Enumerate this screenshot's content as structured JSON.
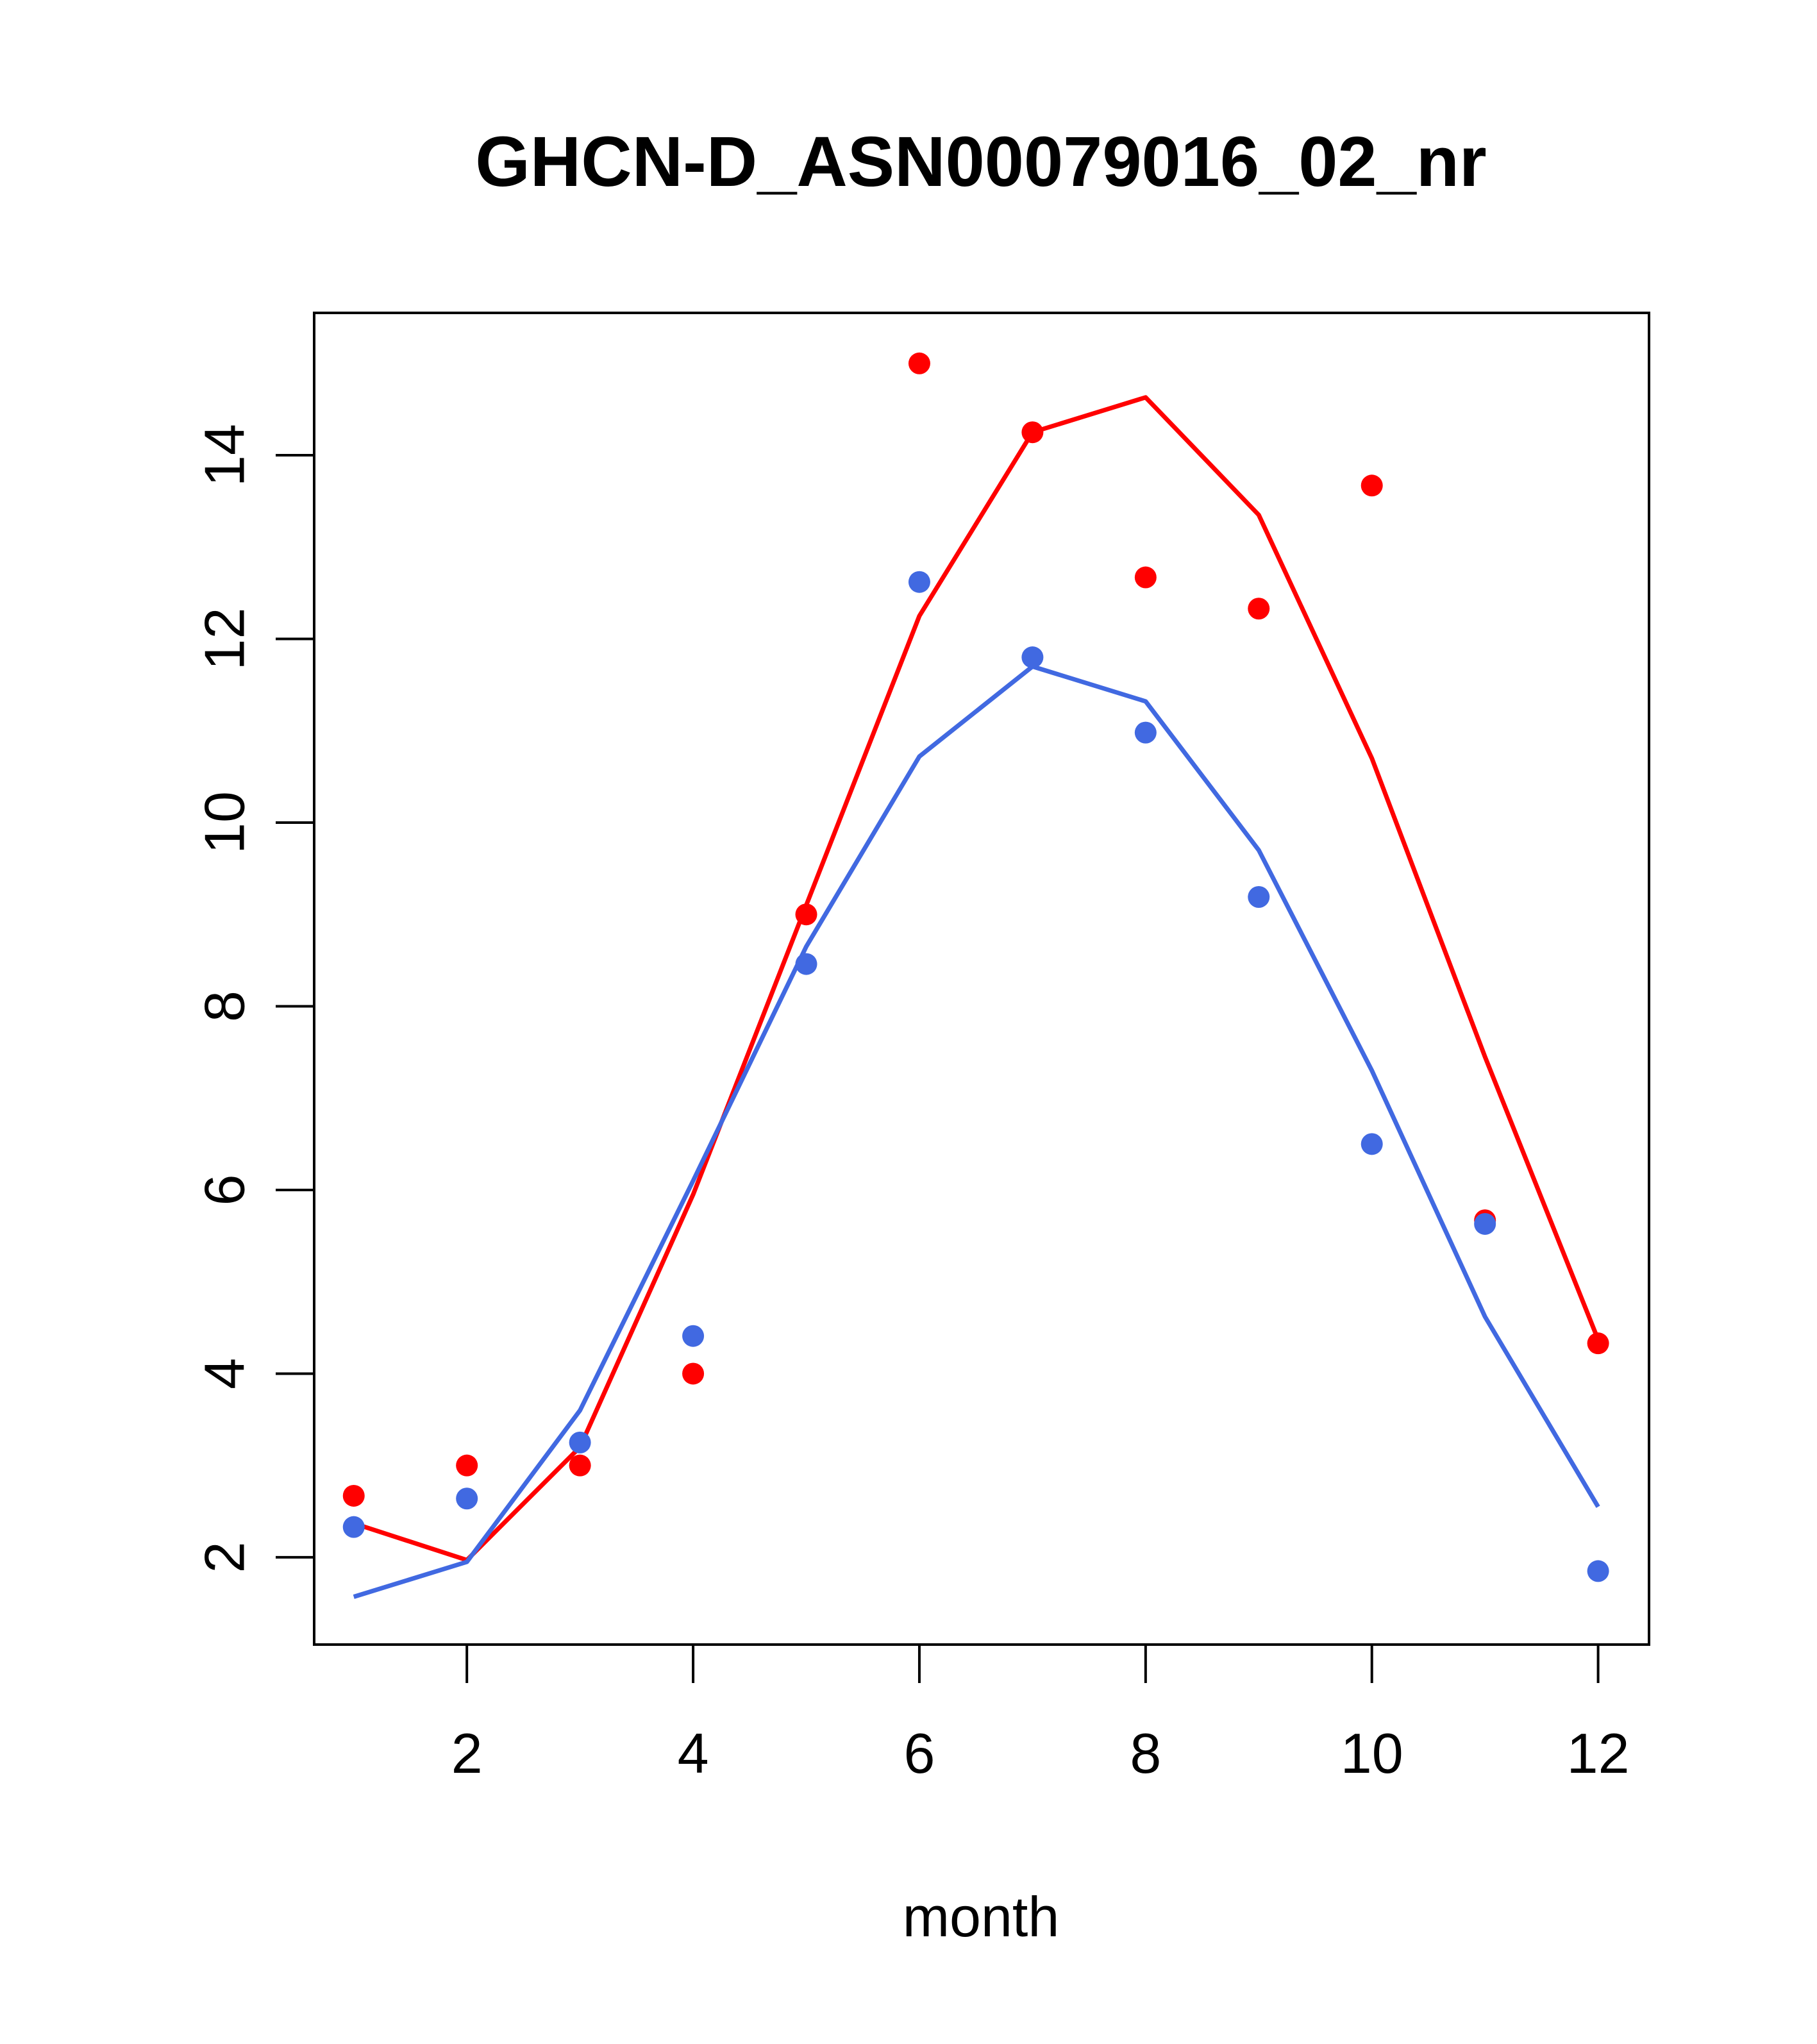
{
  "chart_data": {
    "type": "line",
    "title": "GHCN-D_ASN00079016_02_nr",
    "xlabel": "month",
    "ylabel": "",
    "xlim": [
      0.65,
      12.45
    ],
    "ylim": [
      1.05,
      15.55
    ],
    "x_ticks": [
      2,
      4,
      6,
      8,
      10,
      12
    ],
    "y_ticks": [
      2,
      4,
      6,
      8,
      10,
      12,
      14
    ],
    "grid": false,
    "series": [
      {
        "color": "#ff0000",
        "x": [
          1,
          2,
          3,
          4,
          5,
          6,
          7,
          8,
          9,
          10,
          11,
          12
        ],
        "points": [
          2.67,
          3.0,
          3.0,
          4.0,
          9.0,
          15.0,
          14.25,
          12.67,
          12.33,
          13.67,
          5.67,
          4.33
        ],
        "line": [
          2.37,
          1.97,
          3.2,
          5.95,
          9.1,
          12.25,
          14.25,
          14.63,
          13.35,
          10.7,
          7.45,
          4.37
        ]
      },
      {
        "color": "#4169e1",
        "x": [
          1,
          2,
          3,
          4,
          5,
          6,
          7,
          8,
          9,
          10,
          11,
          12
        ],
        "points": [
          2.33,
          2.64,
          3.25,
          4.41,
          8.46,
          12.62,
          11.8,
          10.98,
          9.19,
          6.5,
          5.63,
          1.85
        ],
        "line": [
          1.57,
          1.95,
          3.6,
          6.1,
          8.65,
          10.72,
          11.7,
          11.32,
          9.7,
          7.3,
          4.62,
          2.55
        ]
      }
    ]
  }
}
